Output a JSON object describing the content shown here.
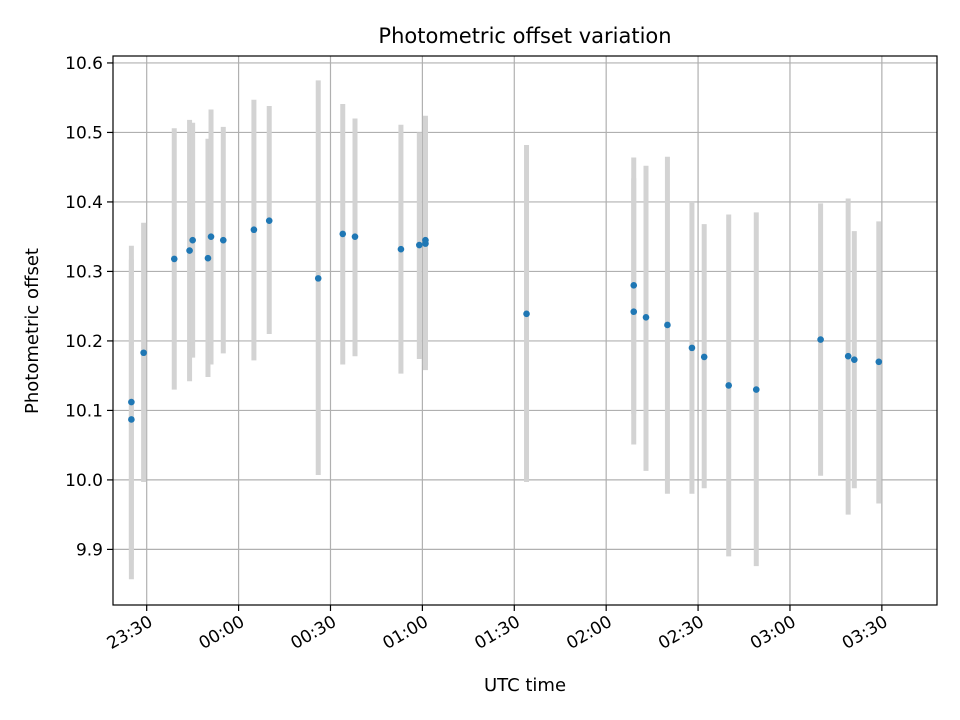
{
  "chart_data": {
    "type": "scatter",
    "title": "Photometric offset variation",
    "xlabel": "UTC time",
    "ylabel": "Photometric offset",
    "grid": true,
    "x_ticks": [
      "23:30",
      "00:00",
      "00:30",
      "01:00",
      "01:30",
      "02:00",
      "02:30",
      "03:00",
      "03:30"
    ],
    "y_ticks": [
      "9.9",
      "10.0",
      "10.1",
      "10.2",
      "10.3",
      "10.4",
      "10.5",
      "10.6"
    ],
    "xlim": [
      "23:19",
      "03:48"
    ],
    "ylim": [
      9.82,
      10.61
    ],
    "marker_color": "#1f77b4",
    "errorbar_color": "#d3d3d3",
    "series": [
      {
        "points": [
          {
            "x": "23:25",
            "y": 10.112,
            "err_low": 9.885,
            "err_high": 10.337
          },
          {
            "x": "23:25",
            "y": 10.087,
            "err_low": 9.857,
            "err_high": 10.317
          },
          {
            "x": "23:29",
            "y": 10.183,
            "err_low": 9.997,
            "err_high": 10.37
          },
          {
            "x": "23:39",
            "y": 10.318,
            "err_low": 10.13,
            "err_high": 10.506
          },
          {
            "x": "23:44",
            "y": 10.33,
            "err_low": 10.142,
            "err_high": 10.518
          },
          {
            "x": "23:45",
            "y": 10.345,
            "err_low": 10.176,
            "err_high": 10.514
          },
          {
            "x": "23:50",
            "y": 10.319,
            "err_low": 10.148,
            "err_high": 10.491
          },
          {
            "x": "23:51",
            "y": 10.35,
            "err_low": 10.166,
            "err_high": 10.533
          },
          {
            "x": "23:55",
            "y": 10.345,
            "err_low": 10.182,
            "err_high": 10.508
          },
          {
            "x": "00:05",
            "y": 10.36,
            "err_low": 10.172,
            "err_high": 10.547
          },
          {
            "x": "00:10",
            "y": 10.373,
            "err_low": 10.21,
            "err_high": 10.538
          },
          {
            "x": "00:26",
            "y": 10.29,
            "err_low": 10.007,
            "err_high": 10.575
          },
          {
            "x": "00:34",
            "y": 10.354,
            "err_low": 10.166,
            "err_high": 10.541
          },
          {
            "x": "00:38",
            "y": 10.35,
            "err_low": 10.178,
            "err_high": 10.52
          },
          {
            "x": "00:53",
            "y": 10.332,
            "err_low": 10.153,
            "err_high": 10.511
          },
          {
            "x": "00:59",
            "y": 10.338,
            "err_low": 10.174,
            "err_high": 10.5
          },
          {
            "x": "01:01",
            "y": 10.34,
            "err_low": 10.158,
            "err_high": 10.524
          },
          {
            "x": "01:01",
            "y": 10.345,
            "err_low": 10.165,
            "err_high": 10.52
          },
          {
            "x": "01:34",
            "y": 10.239,
            "err_low": 9.997,
            "err_high": 10.482
          },
          {
            "x": "02:09",
            "y": 10.28,
            "err_low": 10.095,
            "err_high": 10.464
          },
          {
            "x": "02:09",
            "y": 10.242,
            "err_low": 10.051,
            "err_high": 10.434
          },
          {
            "x": "02:13",
            "y": 10.234,
            "err_low": 10.013,
            "err_high": 10.452
          },
          {
            "x": "02:20",
            "y": 10.223,
            "err_low": 9.98,
            "err_high": 10.465
          },
          {
            "x": "02:28",
            "y": 10.19,
            "err_low": 9.98,
            "err_high": 10.4
          },
          {
            "x": "02:32",
            "y": 10.177,
            "err_low": 9.988,
            "err_high": 10.368
          },
          {
            "x": "02:40",
            "y": 10.136,
            "err_low": 9.89,
            "err_high": 10.382
          },
          {
            "x": "02:49",
            "y": 10.13,
            "err_low": 9.876,
            "err_high": 10.385
          },
          {
            "x": "03:10",
            "y": 10.202,
            "err_low": 10.006,
            "err_high": 10.398
          },
          {
            "x": "03:19",
            "y": 10.178,
            "err_low": 9.95,
            "err_high": 10.405
          },
          {
            "x": "03:21",
            "y": 10.173,
            "err_low": 9.988,
            "err_high": 10.358
          },
          {
            "x": "03:29",
            "y": 10.17,
            "err_low": 9.966,
            "err_high": 10.372
          }
        ]
      }
    ]
  }
}
